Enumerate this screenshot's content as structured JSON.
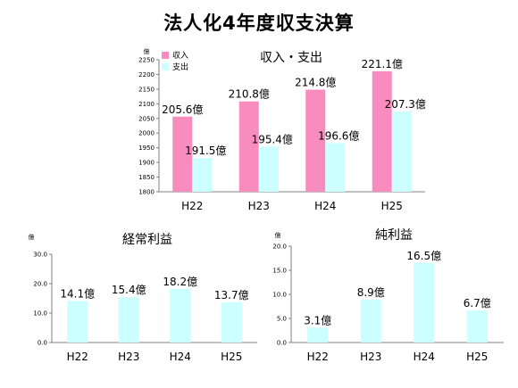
{
  "page_title": "法人化4年度収支決算",
  "chart_data": [
    {
      "type": "bar",
      "title": "収入・支出",
      "unit_label": "億",
      "categories": [
        "H22",
        "H23",
        "H24",
        "H25"
      ],
      "series": [
        {
          "name": "収入",
          "color": "#f98cbf",
          "values": [
            205.6,
            210.8,
            214.8,
            221.1
          ],
          "labels": [
            "205.6億",
            "210.8億",
            "214.8億",
            "221.1億"
          ]
        },
        {
          "name": "支出",
          "color": "#ccffff",
          "values": [
            191.5,
            195.4,
            196.6,
            207.3
          ],
          "labels": [
            "191.5億",
            "195.4億",
            "196.6億",
            "207.3億"
          ]
        }
      ],
      "ylim": [
        180,
        225
      ],
      "yticks": [
        180,
        185,
        190,
        195,
        200,
        205,
        210,
        215,
        220,
        225
      ],
      "ytick_labels": [
        "1800",
        "1850",
        "1900",
        "1950",
        "2000",
        "2050",
        "2100",
        "2150",
        "2200",
        "2250"
      ],
      "legend": "top-left",
      "grid": false
    },
    {
      "type": "bar",
      "title": "経常利益",
      "unit_label": "億",
      "categories": [
        "H22",
        "H23",
        "H24",
        "H25"
      ],
      "series": [
        {
          "color": "#ccffff",
          "values": [
            14.1,
            15.4,
            18.2,
            13.7
          ],
          "labels": [
            "14.1億",
            "15.4億",
            "18.2億",
            "13.7億"
          ]
        }
      ],
      "ylim": [
        0,
        30
      ],
      "yticks": [
        0,
        10,
        20,
        30
      ],
      "ytick_labels": [
        "0.0",
        "10.0",
        "20.0",
        "30.0"
      ],
      "grid": false
    },
    {
      "type": "bar",
      "title": "純利益",
      "unit_label": "億",
      "categories": [
        "H22",
        "H23",
        "H24",
        "H25"
      ],
      "series": [
        {
          "color": "#ccffff",
          "values": [
            3.1,
            8.9,
            16.5,
            6.7
          ],
          "labels": [
            "3.1億",
            "8.9億",
            "16.5億",
            "6.7億"
          ]
        }
      ],
      "ylim": [
        0,
        20
      ],
      "yticks": [
        0,
        5,
        10,
        15,
        20
      ],
      "ytick_labels": [
        "0.0",
        "5.0",
        "10.0",
        "15.0",
        "20.0"
      ],
      "grid": false
    }
  ]
}
